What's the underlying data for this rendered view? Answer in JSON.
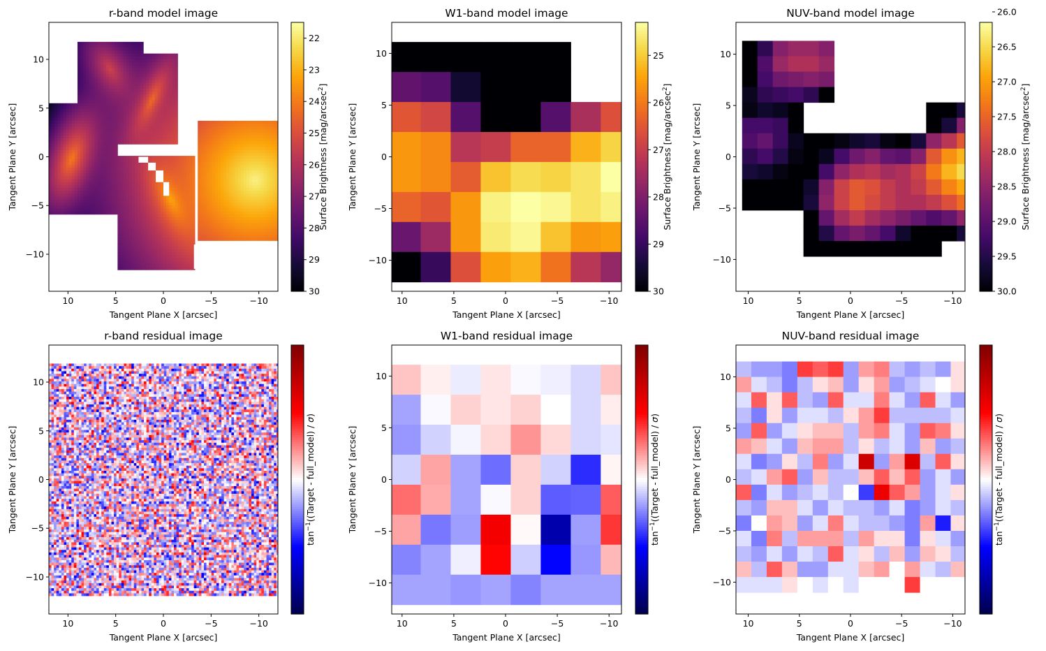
{
  "chart_data": [
    {
      "type": "heatmap",
      "title": "r-band model image",
      "xlabel": "Tangent Plane X [arcsec]",
      "ylabel": "Tangent Plane Y [arcsec]",
      "xlim": [
        12,
        -12
      ],
      "ylim": [
        -13.8,
        13.8
      ],
      "xticks": [
        10,
        5,
        0,
        -5,
        -10
      ],
      "yticks": [
        10,
        5,
        0,
        -5,
        -10
      ],
      "colorbar": {
        "label": "Surface Brightness [mag/arcsec",
        "label_sup": "2",
        "label_end": "]",
        "cmap": "inferno",
        "reversed": true,
        "range": [
          30,
          21.5
        ],
        "ticks": [
          22,
          23,
          24,
          25,
          26,
          27,
          28,
          29,
          30
        ]
      },
      "components": [
        {
          "kind": "ellipse",
          "x": 9.6,
          "y": -0.2,
          "sb_center": 24.0,
          "axis_ratio": 0.45,
          "pa_deg": 20
        },
        {
          "kind": "ellipse",
          "x": 5.6,
          "y": 9.0,
          "sb_center": 25.4,
          "axis_ratio": 0.55,
          "pa_deg": -30
        },
        {
          "kind": "ellipse",
          "x": 1.2,
          "y": 5.8,
          "sb_center": 24.4,
          "axis_ratio": 0.3,
          "pa_deg": 25
        },
        {
          "kind": "ellipse",
          "x": -0.8,
          "y": -4.4,
          "sb_center": 23.4,
          "axis_ratio": 0.4,
          "pa_deg": -25
        },
        {
          "kind": "sersic",
          "x": -9.6,
          "y": -2.4,
          "sb_center": 21.8,
          "axis_ratio": 1.0,
          "pa_deg": 0
        }
      ]
    },
    {
      "type": "heatmap",
      "title": "W1-band model image",
      "xlabel": "Tangent Plane X [arcsec]",
      "ylabel": "Tangent Plane Y [arcsec]",
      "xlim": [
        11,
        -11.2
      ],
      "ylim": [
        -13,
        13
      ],
      "xticks": [
        10,
        5,
        0,
        -5,
        -10
      ],
      "yticks": [
        10,
        5,
        0,
        -5,
        -10
      ],
      "colorbar": {
        "label": "Surface Brightness [mag/arcsec",
        "label_sup": "2",
        "label_end": "]",
        "cmap": "inferno",
        "reversed": true,
        "range": [
          30,
          24.3
        ],
        "ticks": [
          25,
          26,
          27,
          28,
          29,
          30
        ]
      },
      "pixel_size": 2.9,
      "grid_x0": 11.1,
      "grid_y0": 11.1,
      "values": [
        [
          30,
          30,
          30,
          30,
          30,
          30,
          null,
          null
        ],
        [
          28.4,
          28.6,
          29.5,
          30,
          30,
          30,
          null,
          null
        ],
        [
          26.5,
          26.8,
          28.6,
          30,
          30,
          28.6,
          27.4,
          26.6
        ],
        [
          25.6,
          25.8,
          27.2,
          27.0,
          26.3,
          26.3,
          25.3,
          24.9
        ],
        [
          25.6,
          25.8,
          26.4,
          25.1,
          24.8,
          24.9,
          24.7,
          24.1
        ],
        [
          26.3,
          26.5,
          25.6,
          24.5,
          24.2,
          24.4,
          24.7,
          24.5
        ],
        [
          28.3,
          27.6,
          25.6,
          24.6,
          24.4,
          25.1,
          25.6,
          25.5
        ],
        [
          30,
          29.0,
          26.6,
          25.5,
          25.3,
          26.1,
          27.2,
          27.7
        ]
      ]
    },
    {
      "type": "heatmap",
      "title": "NUV-band model image",
      "xlabel": "Tangent Plane X [arcsec]",
      "ylabel": "Tangent Plane Y [arcsec]",
      "xlim": [
        11.2,
        -11.2
      ],
      "ylim": [
        -13.1,
        13.1
      ],
      "xticks": [
        10,
        5,
        0,
        -5,
        -10
      ],
      "yticks": [
        10,
        5,
        0,
        -5,
        -10
      ],
      "colorbar": {
        "label": "Surface Brightness [mag/arcsec",
        "label_sup": "2",
        "label_end": "]",
        "cmap": "inferno",
        "reversed": true,
        "range": [
          30,
          26.15
        ],
        "ticks": [
          26.0,
          26.5,
          27.0,
          27.5,
          28.0,
          28.5,
          29.0,
          29.5,
          30.0
        ],
        "tick_labels": [
          "26.0",
          "26.5",
          "27.0",
          "27.5",
          "28.0",
          "28.5",
          "29.0",
          "29.5",
          "30.0"
        ]
      },
      "pixel_size": 1.5,
      "grid_x0": 10.6,
      "grid_y0": 11.3,
      "values": [
        [
          30,
          29.4,
          28.6,
          28.4,
          28.4,
          28.6,
          null,
          null,
          null,
          null,
          null,
          null,
          null,
          null,
          null,
          null,
          null,
          null,
          null,
          null
        ],
        [
          30,
          29.1,
          28.4,
          28.2,
          28.2,
          28.4,
          null,
          null,
          null,
          null,
          null,
          null,
          null,
          null,
          null,
          null,
          null,
          null,
          null,
          null
        ],
        [
          30,
          29.2,
          28.8,
          28.7,
          28.6,
          28.7,
          null,
          null,
          null,
          null,
          null,
          null,
          null,
          null,
          null,
          null,
          null,
          null,
          null,
          null
        ],
        [
          29.8,
          29.4,
          29.3,
          29.2,
          29.4,
          30,
          null,
          null,
          null,
          null,
          null,
          null,
          null,
          null,
          null,
          null,
          null,
          null,
          null,
          null
        ],
        [
          29.9,
          29.7,
          29.8,
          30,
          null,
          null,
          null,
          null,
          null,
          null,
          null,
          null,
          30,
          30,
          29.6,
          28.9,
          28.6,
          28.6,
          null,
          null
        ],
        [
          29.2,
          29.2,
          29.3,
          30,
          null,
          null,
          null,
          null,
          null,
          null,
          null,
          null,
          30,
          29.6,
          28.6,
          27.8,
          27.2,
          27.1,
          null,
          null
        ],
        [
          29.1,
          28.9,
          29.3,
          29.8,
          30,
          30,
          29.9,
          29.7,
          29.6,
          29.9,
          30,
          29.6,
          28.5,
          28.1,
          27.6,
          27.0,
          26.6,
          26.7,
          null,
          null
        ],
        [
          29.4,
          29.2,
          29.5,
          29.9,
          30,
          29.8,
          29.2,
          28.8,
          28.6,
          28.9,
          29.0,
          28.6,
          27.6,
          27.1,
          26.8,
          26.3,
          26.2,
          26.3,
          null,
          null
        ],
        [
          29.6,
          29.7,
          29.9,
          30,
          30,
          29.2,
          28.5,
          28.2,
          28.1,
          28.3,
          28.2,
          27.9,
          27.3,
          26.8,
          26.5,
          26.2,
          26.2,
          26.3,
          null,
          null
        ],
        [
          30,
          30,
          30,
          30,
          29.7,
          28.6,
          27.9,
          27.6,
          27.7,
          28.0,
          28.2,
          28.0,
          27.6,
          27.2,
          26.9,
          26.6,
          26.6,
          26.7,
          null,
          null
        ],
        [
          30,
          30,
          30,
          30,
          29.6,
          28.5,
          27.9,
          27.6,
          27.8,
          28.0,
          28.2,
          28.2,
          28.0,
          27.7,
          27.4,
          27.0,
          26.9,
          27.1,
          null,
          null
        ],
        [
          null,
          null,
          null,
          null,
          30,
          28.9,
          28.3,
          28.0,
          28.3,
          28.5,
          28.7,
          28.9,
          29.1,
          28.9,
          28.5,
          28.2,
          28.0,
          28.1,
          null,
          null
        ],
        [
          null,
          null,
          null,
          null,
          30,
          29.5,
          28.9,
          28.7,
          28.9,
          29.2,
          29.7,
          30,
          30,
          30,
          29.6,
          29.2,
          28.9,
          28.9,
          null,
          null
        ],
        [
          null,
          null,
          null,
          null,
          30,
          30,
          30,
          30,
          30,
          30,
          30,
          30,
          30,
          null,
          null,
          null,
          null,
          null,
          null,
          null
        ]
      ]
    },
    {
      "type": "heatmap",
      "title": "r-band residual image",
      "xlabel": "Tangent Plane X [arcsec]",
      "ylabel": "Tangent Plane Y [arcsec]",
      "xlim": [
        12,
        -12
      ],
      "ylim": [
        -13.8,
        13.8
      ],
      "xticks": [
        10,
        5,
        0,
        -5,
        -10
      ],
      "yticks": [
        10,
        5,
        0,
        -5,
        -10
      ],
      "colorbar": {
        "label_pre": "tan",
        "label_sup": "−1",
        "label": "((Target - full_model) / σ)",
        "cmap": "seismic",
        "range": [
          -1.5708,
          1.5708
        ]
      },
      "noise_seed": 7,
      "pixel_size": 0.262,
      "extent": [
        12,
        -12,
        -11.9,
        11.9
      ]
    },
    {
      "type": "heatmap",
      "title": "W1-band residual image",
      "xlabel": "Tangent Plane X [arcsec]",
      "ylabel": "Tangent Plane Y [arcsec]",
      "xlim": [
        11,
        -11.2
      ],
      "ylim": [
        -13,
        13
      ],
      "xticks": [
        10,
        5,
        0,
        -5,
        -10
      ],
      "yticks": [
        10,
        5,
        0,
        -5,
        -10
      ],
      "colorbar": {
        "label_pre": "tan",
        "label_sup": "−1",
        "label": "((Target - full_model) / σ)",
        "cmap": "seismic",
        "range": [
          -1.5708,
          1.5708
        ]
      },
      "pixel_size": 2.9,
      "grid_x0": 11.1,
      "grid_y0": 11.1,
      "values": [
        [
          0.18,
          0.05,
          -0.06,
          0.08,
          -0.02,
          -0.05,
          -0.12,
          0.18
        ],
        [
          -0.28,
          -0.02,
          0.14,
          0.08,
          0.14,
          0.0,
          -0.12,
          0.06
        ],
        [
          -0.32,
          -0.14,
          -0.03,
          0.12,
          0.33,
          0.12,
          -0.12,
          -0.08
        ],
        [
          -0.14,
          0.28,
          -0.28,
          -0.45,
          0.14,
          -0.14,
          -0.65,
          0.03
        ],
        [
          0.45,
          0.26,
          -0.28,
          -0.02,
          0.14,
          -0.5,
          -0.48,
          0.5
        ],
        [
          0.28,
          -0.42,
          -0.3,
          0.85,
          0.02,
          -1.15,
          -0.3,
          0.62
        ],
        [
          -0.38,
          -0.28,
          -0.05,
          0.78,
          -0.15,
          -0.78,
          -0.32,
          0.22
        ],
        [
          -0.28,
          -0.28,
          -0.32,
          -0.28,
          -0.38,
          -0.28,
          -0.28,
          -0.28
        ]
      ]
    },
    {
      "type": "heatmap",
      "title": "NUV-band residual image",
      "xlabel": "Tangent Plane X [arcsec]",
      "ylabel": "Tangent Plane Y [arcsec]",
      "xlim": [
        11.2,
        -11.2
      ],
      "ylim": [
        -13.1,
        13.1
      ],
      "xticks": [
        10,
        5,
        0,
        -5,
        -10
      ],
      "yticks": [
        10,
        5,
        0,
        -5,
        -10
      ],
      "colorbar": {
        "label_pre": "tan",
        "label_sup": "−1",
        "label": "((Target - full_model) / σ)",
        "cmap": "seismic",
        "range": [
          -1.5708,
          1.5708
        ]
      },
      "pixel_size": 1.5,
      "grid_x0": 11.2,
      "grid_y0": 11.5,
      "values": [
        [
          -0.2,
          -0.3,
          -0.3,
          -0.4,
          0.6,
          0.5,
          0.6,
          -0.3,
          0.3,
          0.4,
          -0.2,
          -0.3,
          -0.2,
          -0.3,
          0.1,
          -0.3
        ],
        [
          0.3,
          -0.1,
          -0.2,
          -0.4,
          -0.2,
          0.1,
          0.2,
          -0.3,
          0.1,
          0.3,
          -0.3,
          -0.2,
          -0.1,
          0.0,
          0.1,
          -0.4
        ],
        [
          -0.1,
          0.5,
          0.1,
          0.5,
          -0.2,
          -0.3,
          0.5,
          -0.1,
          -0.1,
          0.4,
          -0.1,
          -0.3,
          0.5,
          -0.1,
          -0.3,
          0.2
        ],
        [
          -0.2,
          -0.4,
          0.1,
          -0.3,
          -0.1,
          -0.1,
          -0.2,
          0.1,
          0.3,
          0.6,
          -0.2,
          -0.2,
          -0.2,
          -0.2,
          -0.1,
          -0.4
        ],
        [
          -0.3,
          0.5,
          -0.3,
          -0.1,
          0.1,
          0.2,
          0.2,
          -0.2,
          0.3,
          0.4,
          -0.1,
          -0.3,
          0.5,
          0.4,
          0.1,
          -0.2
        ],
        [
          0.3,
          0.2,
          -0.1,
          -0.3,
          0.2,
          0.3,
          0.3,
          -0.2,
          0.1,
          -0.2,
          -0.1,
          -0.3,
          0.2,
          -0.3,
          -0.2,
          -0.2
        ],
        [
          -0.1,
          -0.4,
          -0.3,
          0.1,
          -0.2,
          0.4,
          -0.3,
          -0.1,
          1.1,
          -0.3,
          0.3,
          1.0,
          -0.2,
          0.5,
          0.1,
          -0.3
        ],
        [
          -0.2,
          -0.1,
          0.3,
          0.5,
          -0.3,
          0.2,
          -0.2,
          -0.2,
          0.2,
          0.5,
          0.2,
          0.5,
          -0.3,
          -0.1,
          -0.3,
          0.0
        ],
        [
          0.5,
          -0.4,
          -0.1,
          -0.3,
          -0.2,
          -0.1,
          -0.2,
          0.0,
          -0.6,
          0.9,
          0.5,
          0.3,
          -0.3,
          -0.1,
          0.1,
          -0.3
        ],
        [
          -0.2,
          -0.3,
          0.2,
          0.2,
          -0.1,
          -0.3,
          -0.1,
          -0.2,
          -0.2,
          -0.3,
          -0.1,
          -0.4,
          -0.3,
          -0.1,
          -0.2,
          0.2
        ],
        [
          -0.4,
          0.0,
          0.3,
          0.2,
          -0.3,
          -0.1,
          0.4,
          -0.1,
          -0.2,
          -0.2,
          -0.3,
          -0.4,
          0.3,
          -0.7,
          0.1,
          -0.4
        ],
        [
          -0.1,
          -0.4,
          0.4,
          -0.2,
          0.3,
          0.3,
          0.3,
          -0.2,
          0.3,
          0.1,
          0.1,
          -0.4,
          0.1,
          -0.1,
          -0.3,
          -0.2
        ],
        [
          -0.2,
          -0.3,
          -0.1,
          -0.3,
          -0.1,
          -0.2,
          0.5,
          -0.1,
          0.1,
          -0.2,
          0.2,
          -0.3,
          0.2,
          0.1,
          -0.2,
          -0.3
        ],
        [
          0.2,
          -0.2,
          0.5,
          0.2,
          -0.3,
          -0.3,
          -0.1,
          -0.1,
          0.2,
          0.3,
          0.0,
          0.3,
          -0.1,
          -0.2,
          0.2,
          -0.3
        ],
        [
          -0.1,
          -0.1,
          -0.1,
          0.1,
          0.0,
          -0.1,
          0.0,
          -0.1,
          0.0,
          0.0,
          0.0,
          0.6,
          0.0,
          0.0,
          0.0,
          -0.2
        ]
      ]
    }
  ]
}
